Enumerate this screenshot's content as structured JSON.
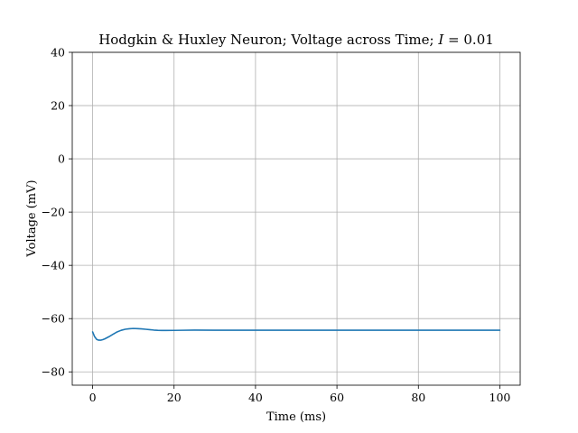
{
  "chart_data": {
    "type": "line",
    "title": "Hodgkin & Huxley Neuron; Voltage across Time; I = 0.01",
    "title_parts": {
      "prefix": "Hodgkin & Huxley Neuron; Voltage across Time; ",
      "variable": "I",
      "suffix": " = 0.01"
    },
    "xlabel": "Time (ms)",
    "ylabel": "Voltage (mV)",
    "xlim": [
      -5,
      105
    ],
    "ylim": [
      -85,
      40
    ],
    "grid": true,
    "x_ticks": [
      0,
      20,
      40,
      60,
      80,
      100
    ],
    "y_ticks": [
      40,
      20,
      0,
      -20,
      -40,
      -60,
      -80
    ],
    "x_tick_labels": [
      "0",
      "20",
      "40",
      "60",
      "80",
      "100"
    ],
    "y_tick_labels": [
      "40",
      "20",
      "0",
      "−20",
      "−40",
      "−60",
      "−80"
    ],
    "series": [
      {
        "color": "#1f77b4",
        "x": [
          0,
          0.5,
          1,
          1.5,
          2,
          2.5,
          3,
          4,
          5,
          6,
          7,
          8,
          9,
          10,
          11,
          12,
          13,
          14,
          15,
          16,
          17,
          18,
          20,
          22,
          25,
          30,
          40,
          50,
          60,
          70,
          80,
          90,
          100
        ],
        "y": [
          -65.0,
          -66.8,
          -67.8,
          -68.1,
          -68.1,
          -67.9,
          -67.6,
          -66.8,
          -65.9,
          -65.0,
          -64.4,
          -64.0,
          -63.8,
          -63.7,
          -63.75,
          -63.85,
          -64.0,
          -64.15,
          -64.3,
          -64.4,
          -64.45,
          -64.45,
          -64.42,
          -64.38,
          -64.32,
          -64.35,
          -64.35,
          -64.35,
          -64.35,
          -64.35,
          -64.35,
          -64.35,
          -64.35
        ]
      }
    ]
  }
}
